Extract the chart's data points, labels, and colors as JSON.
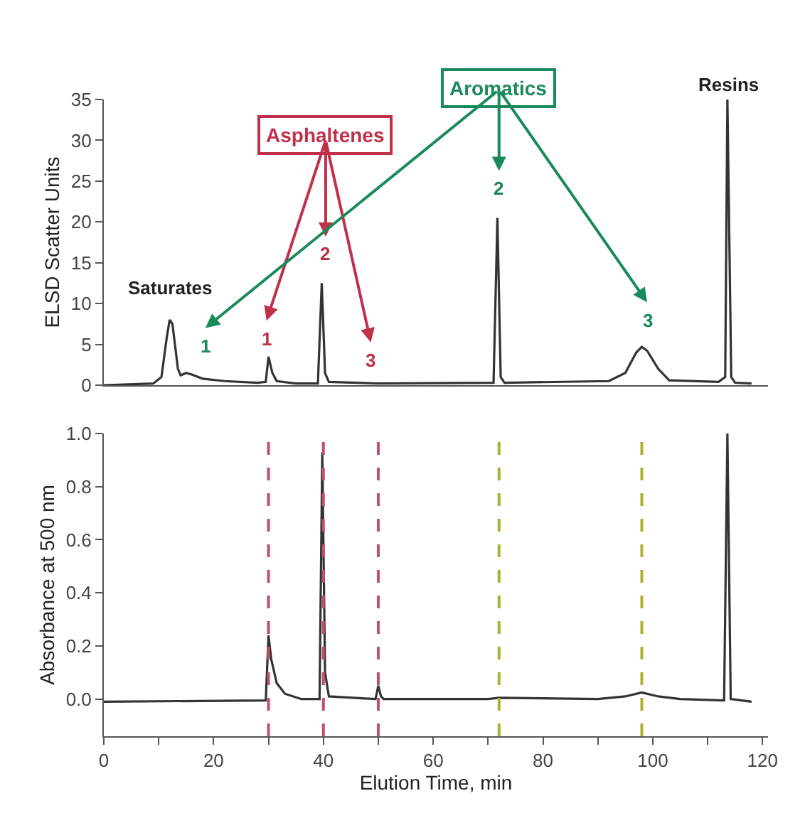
{
  "chart_data": [
    {
      "type": "line",
      "ylabel": "ELSD Scatter Units",
      "xlim": [
        0,
        121
      ],
      "ylim": [
        0,
        35
      ],
      "yticks": [
        0,
        5,
        10,
        15,
        20,
        25,
        30,
        35
      ],
      "tick_labels": "y",
      "marker": "none",
      "line_style": "solid",
      "series": [
        {
          "color": "#333333",
          "x": [
            0,
            9,
            10.5,
            11.5,
            12,
            12.5,
            13.5,
            14,
            15,
            16,
            18,
            22,
            28,
            29.5,
            30,
            30.7,
            31.5,
            35,
            39,
            39.7,
            40.3,
            41,
            50,
            71,
            71.7,
            72.3,
            73,
            92,
            95,
            97,
            98,
            99,
            101,
            103,
            112,
            113.2,
            113.6,
            114.3,
            115,
            118
          ],
          "values": [
            0,
            0.2,
            1,
            6,
            8,
            7.5,
            2,
            1.2,
            1.5,
            1.3,
            0.8,
            0.5,
            0.3,
            0.4,
            3.5,
            1.5,
            0.5,
            0.2,
            0.2,
            12.5,
            1.5,
            0.4,
            0.2,
            0.3,
            20.5,
            1,
            0.3,
            0.5,
            1.5,
            4,
            4.7,
            4.2,
            2,
            0.6,
            0.4,
            1,
            35,
            1,
            0.3,
            0.2
          ]
        }
      ],
      "annotations": [
        "Saturates",
        "Resins",
        "Asphaltenes",
        "1",
        "2",
        "3",
        "Aromatics",
        "1",
        "2",
        "3"
      ]
    },
    {
      "type": "line",
      "xlabel": "Elution Time, min",
      "ylabel": "Absorbance at 500 nm",
      "xlim": [
        0,
        121
      ],
      "xticks": [
        0,
        {
          "value": 10,
          "label": null
        },
        20,
        {
          "value": 30,
          "label": null
        },
        40,
        {
          "value": 50,
          "label": null
        },
        60,
        {
          "value": 70,
          "label": null
        },
        80,
        {
          "value": 90,
          "label": null
        },
        100,
        {
          "value": 110,
          "label": null
        },
        120
      ],
      "ylim": [
        -0.14,
        1.0
      ],
      "yticks": [
        {
          "value": 0,
          "label": "0.0"
        },
        {
          "value": 0.2,
          "label": "0.2"
        },
        {
          "value": 0.4,
          "label": "0.4"
        },
        {
          "value": 0.6,
          "label": "0.6"
        },
        {
          "value": 0.8,
          "label": "0.8"
        },
        {
          "value": 1.0,
          "label": "1.0"
        }
      ],
      "marker": "none",
      "line_style": "solid",
      "series": [
        {
          "color": "#333333",
          "x": [
            0,
            29.5,
            30,
            30.5,
            31.5,
            33,
            36,
            39.3,
            39.8,
            40.3,
            41,
            49.5,
            50,
            50.5,
            51,
            70,
            72,
            90,
            95,
            98,
            101,
            105,
            113,
            113.6,
            114.2,
            118
          ],
          "values": [
            -0.01,
            -0.005,
            0.24,
            0.15,
            0.06,
            0.02,
            0.0,
            0.0,
            0.93,
            0.1,
            0.01,
            0.0,
            0.05,
            0.01,
            0.0,
            0.0,
            0.005,
            0.0,
            0.01,
            0.025,
            0.01,
            0.0,
            -0.005,
            1.0,
            0.0,
            -0.01
          ]
        }
      ],
      "ref_lines": [
        {
          "axis": "x",
          "value": 30,
          "color": "#c0506e",
          "line_style": "dashed"
        },
        {
          "axis": "x",
          "value": 40,
          "color": "#c0506e",
          "line_style": "dashed"
        },
        {
          "axis": "x",
          "value": 50,
          "color": "#c0506e",
          "line_style": "dashed"
        },
        {
          "axis": "x",
          "value": 72,
          "color": "#b0b030",
          "line_style": "dashed"
        },
        {
          "axis": "x",
          "value": 98,
          "color": "#b0b030",
          "line_style": "dashed"
        }
      ]
    }
  ]
}
